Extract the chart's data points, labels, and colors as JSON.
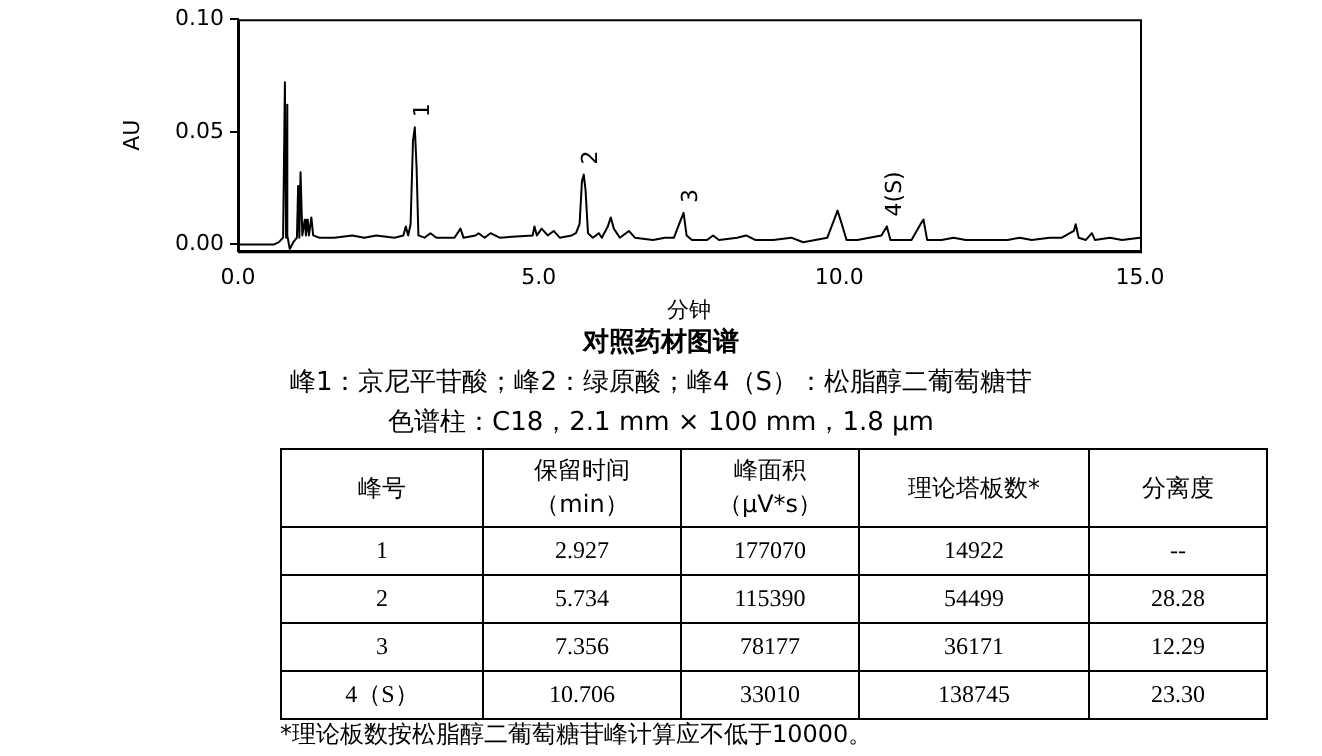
{
  "chart_data": [
    {
      "type": "line",
      "title": "对照药材图谱",
      "subtitle": "峰1：京尼平苷酸；峰2：绿原酸；峰4（S）：松脂醇二葡萄糖苷",
      "xlabel": "分钟",
      "ylabel": "AU",
      "x": [
        0,
        0.6,
        0.68,
        0.75,
        0.78,
        0.8,
        0.81,
        0.83,
        0.86,
        0.92,
        0.98,
        1.0,
        1.02,
        1.04,
        1.07,
        1.11,
        1.13,
        1.16,
        1.18,
        1.22,
        1.25,
        1.35,
        1.6,
        1.9,
        2.1,
        2.3,
        2.6,
        2.75,
        2.79,
        2.83,
        2.87,
        2.91,
        2.94,
        2.97,
        3.0,
        3.1,
        3.2,
        3.3,
        3.6,
        3.7,
        3.75,
        3.95,
        4.0,
        4.1,
        4.2,
        4.35,
        4.9,
        4.93,
        4.97,
        5.05,
        5.15,
        5.25,
        5.35,
        5.55,
        5.62,
        5.68,
        5.72,
        5.75,
        5.78,
        5.82,
        5.9,
        6.0,
        6.05,
        6.15,
        6.2,
        6.25,
        6.35,
        6.5,
        6.6,
        6.9,
        7.1,
        7.25,
        7.35,
        7.41,
        7.46,
        7.55,
        7.8,
        7.9,
        8.0,
        8.3,
        8.45,
        8.6,
        8.9,
        9.2,
        9.4,
        9.8,
        9.9,
        9.97,
        10.03,
        10.12,
        10.3,
        10.5,
        10.7,
        10.79,
        10.85,
        10.95,
        11.05,
        11.2,
        11.35,
        11.4,
        11.46,
        11.7,
        11.9,
        12.1,
        12.3,
        12.6,
        12.8,
        13.0,
        13.2,
        13.5,
        13.7,
        13.9,
        13.93,
        13.98,
        14.1,
        14.2,
        14.25,
        14.5,
        14.7,
        15.0
      ],
      "series": [
        {
          "color": "#000000",
          "values": [
            0,
            0,
            0.001,
            0.003,
            0.072,
            0.003,
            0.062,
            0.004,
            -0.002,
            0.001,
            0.003,
            0.026,
            0.003,
            0.032,
            0.004,
            0.011,
            0.004,
            0.011,
            0.004,
            0.012,
            0.004,
            0.003,
            0.003,
            0.004,
            0.003,
            0.004,
            0.003,
            0.004,
            0.008,
            0.004,
            0.009,
            0.046,
            0.052,
            0.034,
            0.004,
            0.003,
            0.005,
            0.003,
            0.003,
            0.007,
            0.003,
            0.004,
            0.005,
            0.003,
            0.005,
            0.003,
            0.004,
            0.008,
            0.004,
            0.007,
            0.004,
            0.006,
            0.003,
            0.004,
            0.005,
            0.009,
            0.028,
            0.031,
            0.024,
            0.005,
            0.003,
            0.005,
            0.003,
            0.008,
            0.012,
            0.007,
            0.003,
            0.006,
            0.003,
            0.002,
            0.003,
            0.003,
            0.01,
            0.014,
            0.004,
            0.002,
            0.002,
            0.004,
            0.002,
            0.003,
            0.004,
            0.002,
            0.002,
            0.003,
            0.001,
            0.003,
            0.01,
            0.015,
            0.01,
            0.002,
            0.002,
            0.003,
            0.004,
            0.008,
            0.002,
            0.002,
            0.002,
            0.002,
            0.009,
            0.011,
            0.002,
            0.002,
            0.003,
            0.002,
            0.002,
            0.002,
            0.002,
            0.003,
            0.002,
            0.003,
            0.003,
            0.006,
            0.009,
            0.003,
            0.002,
            0.005,
            0.002,
            0.003,
            0.002,
            0.003
          ]
        }
      ],
      "xlim": [
        0,
        15
      ],
      "xticks": [
        {
          "value": 0,
          "label": "0.0"
        },
        {
          "value": 5,
          "label": "5.0"
        },
        {
          "value": 10,
          "label": "10.0"
        },
        {
          "value": 15,
          "label": "15.0"
        }
      ],
      "ylim": [
        -0.003,
        0.1
      ],
      "yticks": [
        {
          "value": 0,
          "label": "0.00"
        },
        {
          "value": 0.05,
          "label": "0.05"
        },
        {
          "value": 0.1,
          "label": "0.10"
        }
      ],
      "grid": false,
      "legend": false,
      "marker": "none",
      "line_style": "solid",
      "annotations": [
        {
          "text": "1",
          "x": 2.94,
          "y": 0.052
        },
        {
          "text": "2",
          "x": 5.75,
          "y": 0.031
        },
        {
          "text": "3",
          "x": 7.41,
          "y": 0.014
        },
        {
          "text": "4(S)",
          "x": 10.79,
          "y": 0.008
        },
        "色谱柱：C18，2.1 mm × 100 mm，1.8 μm"
      ]
    },
    {
      "type": "heatmap",
      "ylabel": "峰号",
      "categories": [
        "保留时间（min）",
        "峰面积（μV*s）",
        "理论塔板数*",
        "分离度"
      ],
      "y_categories": [
        "1",
        "2",
        "3",
        "4（S）"
      ],
      "cells": [
        [
          null,
          null,
          null,
          null
        ],
        [
          null,
          null,
          null,
          null
        ],
        [
          null,
          null,
          null,
          null
        ],
        [
          null,
          null,
          null,
          null
        ]
      ],
      "cell_labels": [
        [
          "2.927",
          "177070",
          "14922",
          "--"
        ],
        [
          "5.734",
          "115390",
          "54499",
          "28.28"
        ],
        [
          "7.356",
          "78177",
          "36171",
          "12.29"
        ],
        [
          "10.706",
          "33010",
          "138745",
          "23.30"
        ]
      ],
      "annotations": [
        "*理论板数按松脂醇二葡萄糖苷峰计算应不低于10000。"
      ]
    }
  ]
}
